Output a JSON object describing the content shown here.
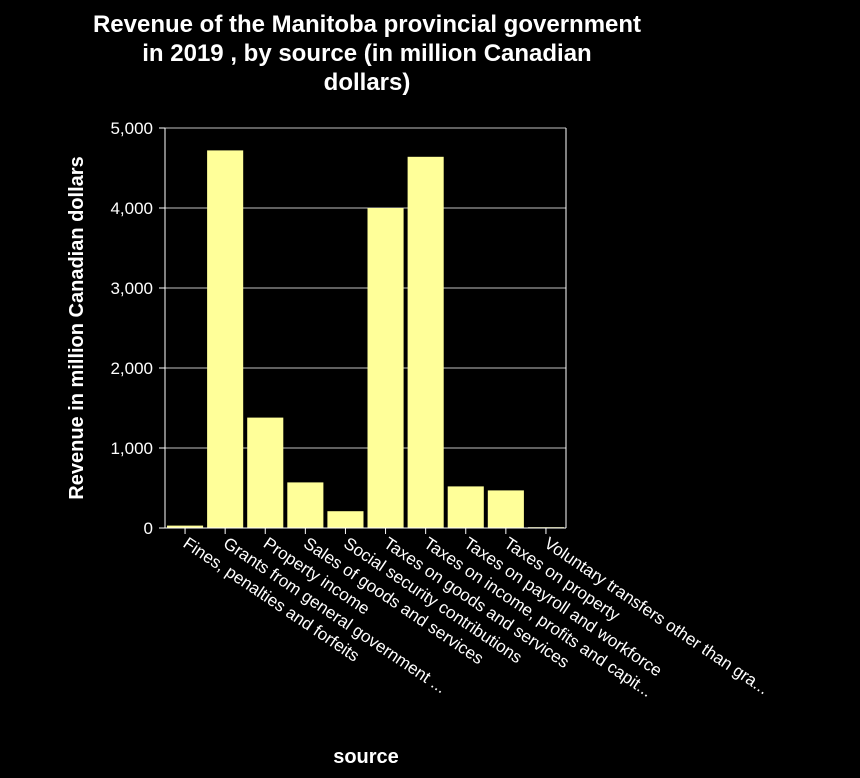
{
  "chart_data": {
    "type": "bar",
    "title": "Revenue of the Manitoba provincial government in 2019 , by source (in million Canadian dollars)",
    "title_lines": [
      "Revenue of the Manitoba provincial government",
      "in 2019 , by source (in million Canadian",
      "dollars)"
    ],
    "xlabel": "source",
    "ylabel": "Revenue in million Canadian dollars",
    "ylim": [
      0,
      5000
    ],
    "yticks": [
      0,
      1000,
      2000,
      3000,
      4000,
      5000
    ],
    "ytick_labels": [
      "0",
      "1,000",
      "2,000",
      "3,000",
      "4,000",
      "5,000"
    ],
    "grid": true,
    "categories": [
      "Fines, penalties and forfeits",
      "Grants from general government ...",
      "Property income",
      "Sales of goods and services",
      "Social security contributions",
      "Taxes on goods and services",
      "Taxes on income, profits and capit...",
      "Taxes on payroll and workforce",
      "Taxes on property",
      "Voluntary transfers other than gra..."
    ],
    "values": [
      30,
      4720,
      1380,
      570,
      210,
      4000,
      4640,
      520,
      470,
      10
    ],
    "colors": {
      "background": "#000000",
      "bar": "#ffff99",
      "text": "#ffffff",
      "grid": "#ffffff"
    }
  }
}
